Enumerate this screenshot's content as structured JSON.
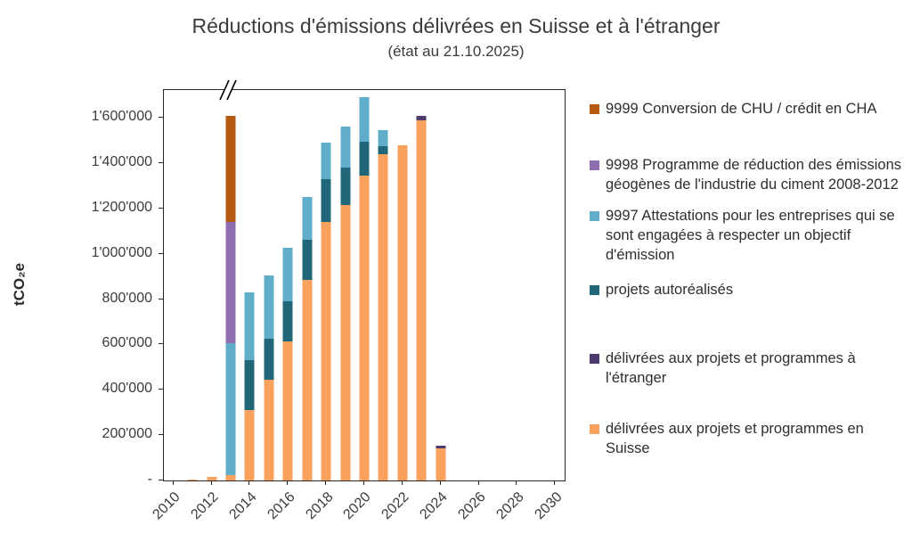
{
  "title": "Réductions d'émissions délivrées en Suisse et à l'étranger",
  "subtitle": "(état au 21.10.2025)",
  "y_axis_title": "tCO₂e",
  "chart_data": {
    "type": "bar",
    "stacked": true,
    "grid": false,
    "legend_position": "right",
    "axis_max": 1722000,
    "ylim": [
      0,
      1722000
    ],
    "axis_break_over_category": 2013,
    "categories": [
      2010,
      2011,
      2012,
      2013,
      2014,
      2015,
      2016,
      2017,
      2018,
      2019,
      2020,
      2021,
      2022,
      2023,
      2024,
      2025,
      2026,
      2027,
      2028,
      2029,
      2030
    ],
    "x_tick_labels": [
      "2010",
      "2012",
      "2014",
      "2016",
      "2018",
      "2020",
      "2022",
      "2024",
      "2026",
      "2028",
      "2030"
    ],
    "y_ticks": [
      {
        "value": 0,
        "label": "-"
      },
      {
        "value": 200000,
        "label": "200'000"
      },
      {
        "value": 400000,
        "label": "400'000"
      },
      {
        "value": 600000,
        "label": "600'000"
      },
      {
        "value": 800000,
        "label": "800'000"
      },
      {
        "value": 1000000,
        "label": "1'000'000"
      },
      {
        "value": 1200000,
        "label": "1'200'000"
      },
      {
        "value": 1400000,
        "label": "1'400'000"
      },
      {
        "value": 1600000,
        "label": "1'600'000"
      }
    ],
    "series": [
      {
        "name": "délivrées aux projets et programmes en Suisse",
        "color": "#F9A15D",
        "values": [
          0,
          5000,
          15000,
          25000,
          310000,
          445000,
          615000,
          885000,
          1140000,
          1215000,
          1345000,
          1440000,
          1480000,
          1590000,
          140000,
          0,
          0,
          0,
          0,
          0,
          0
        ]
      },
      {
        "name": "délivrées aux projets et programmes à l'étranger",
        "color": "#4D3A6D",
        "values": [
          0,
          0,
          0,
          0,
          0,
          0,
          0,
          0,
          0,
          0,
          0,
          0,
          0,
          20000,
          15000,
          0,
          0,
          0,
          0,
          0,
          0
        ]
      },
      {
        "name": "projets autoréalisés",
        "color": "#1F6779",
        "values": [
          0,
          0,
          0,
          0,
          220000,
          180000,
          175000,
          175000,
          190000,
          165000,
          150000,
          35000,
          0,
          0,
          0,
          0,
          0,
          0,
          0,
          0,
          0
        ]
      },
      {
        "name": "9997 Attestations pour les entreprises qui se sont engagées à respecter un objectif d'émission",
        "color": "#5FADC9",
        "values": [
          0,
          0,
          0,
          580000,
          300000,
          280000,
          235000,
          190000,
          160000,
          180000,
          195000,
          70000,
          0,
          0,
          0,
          0,
          0,
          0,
          0,
          0,
          0
        ]
      },
      {
        "name": "9998 Programme de réduction des émissions géogènes de l'industrie du ciment 2008-2012",
        "color": "#8F6DB1",
        "values": [
          0,
          0,
          0,
          535000,
          0,
          0,
          0,
          0,
          0,
          0,
          0,
          0,
          0,
          0,
          0,
          0,
          0,
          0,
          0,
          0,
          0
        ]
      },
      {
        "name": "9999 Conversion de CHU / crédit en CHA",
        "color": "#B55A10",
        "values": [
          0,
          0,
          0,
          470000,
          0,
          0,
          0,
          0,
          0,
          0,
          0,
          0,
          0,
          0,
          0,
          0,
          0,
          0,
          0,
          0,
          0
        ]
      }
    ],
    "legend": [
      {
        "label": "9999 Conversion de CHU / crédit en CHA",
        "color": "#B55A10"
      },
      {
        "label": "9998 Programme de réduction des émissions géogènes de l'industrie du ciment 2008-2012",
        "color": "#8F6DB1"
      },
      {
        "label": "9997 Attestations pour les entreprises qui se sont engagées à respecter un objectif d'émission",
        "color": "#5FADC9"
      },
      {
        "label": "projets autoréalisés",
        "color": "#1F6779"
      },
      {
        "label": "délivrées aux projets et programmes à l'étranger",
        "color": "#4D3A6D"
      },
      {
        "label": "délivrées aux projets et programmes en Suisse",
        "color": "#F9A15D"
      }
    ]
  }
}
